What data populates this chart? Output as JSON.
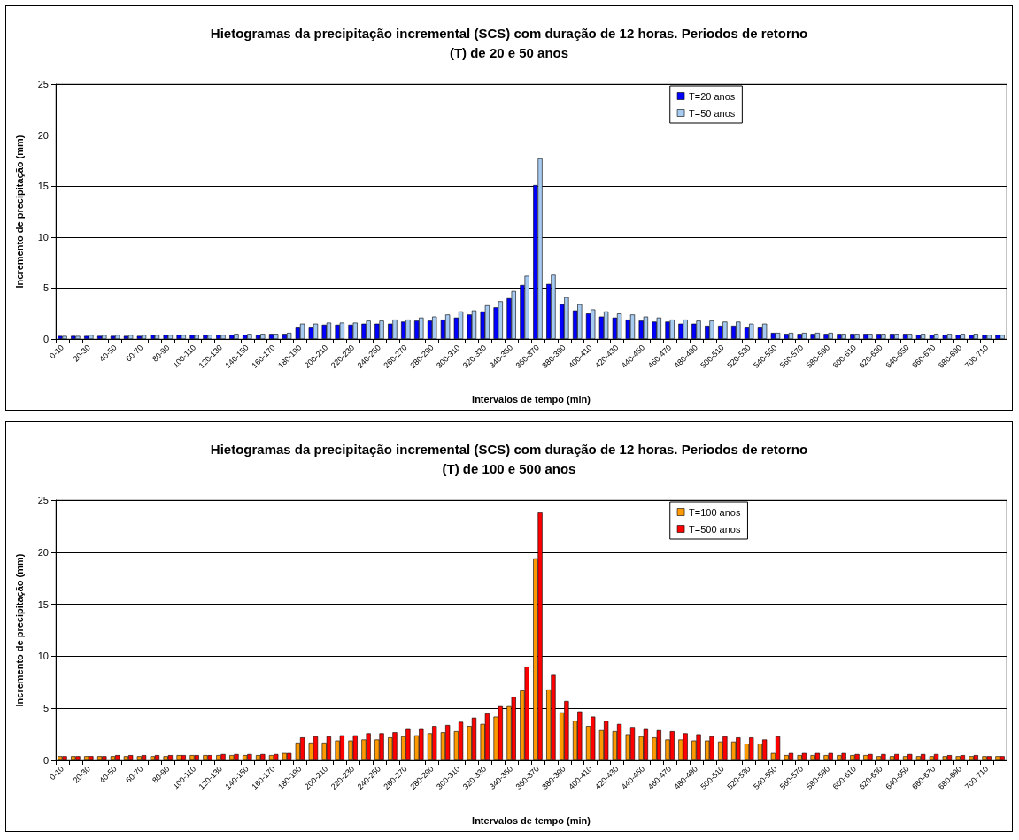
{
  "chart_data": [
    {
      "type": "bar",
      "title": "Hietogramas da precipitação incremental (SCS) com duração de 12 horas. Periodos de retorno\n(T) de 20 e 50 anos",
      "xlabel": "Intervalos de tempo (min)",
      "ylabel": "Incremento de precipitação (mm)",
      "categories": [
        "0-10",
        null,
        "20-30",
        null,
        "40-50",
        null,
        "60-70",
        null,
        "80-90",
        null,
        "100-110",
        null,
        "120-130",
        null,
        "140-150",
        null,
        "160-170",
        null,
        "180-190",
        null,
        "200-210",
        null,
        "220-230",
        null,
        "240-250",
        null,
        "260-270",
        null,
        "280-290",
        null,
        "300-310",
        null,
        "320-330",
        null,
        "340-350",
        null,
        "360-370",
        null,
        "380-390",
        null,
        "400-410",
        null,
        "420-430",
        null,
        "440-450",
        null,
        "460-470",
        null,
        "480-490",
        null,
        "500-510",
        null,
        "520-530",
        null,
        "540-550",
        null,
        "560-570",
        null,
        "580-590",
        null,
        "600-610",
        null,
        "620-630",
        null,
        "640-650",
        null,
        "660-670",
        null,
        "680-690",
        null,
        "700-710",
        null
      ],
      "series": [
        {
          "name": "T=20 anos",
          "color": "#0000ff",
          "values": [
            0.3,
            0.3,
            0.3,
            0.3,
            0.3,
            0.3,
            0.3,
            0.4,
            0.4,
            0.4,
            0.4,
            0.4,
            0.4,
            0.4,
            0.4,
            0.4,
            0.5,
            0.5,
            1.2,
            1.2,
            1.4,
            1.4,
            1.4,
            1.5,
            1.5,
            1.5,
            1.7,
            1.8,
            1.8,
            1.9,
            2.1,
            2.4,
            2.7,
            3.1,
            4.0,
            5.3,
            15.1,
            5.4,
            3.4,
            2.8,
            2.5,
            2.2,
            2.1,
            1.9,
            1.8,
            1.7,
            1.7,
            1.5,
            1.5,
            1.3,
            1.3,
            1.3,
            1.2,
            1.2,
            0.6,
            0.5,
            0.5,
            0.5,
            0.5,
            0.5,
            0.5,
            0.5,
            0.5,
            0.5,
            0.5,
            0.4,
            0.4,
            0.4,
            0.4,
            0.4,
            0.4,
            0.4
          ]
        },
        {
          "name": "T=50 anos",
          "color": "#a6caf0",
          "values": [
            0.3,
            0.3,
            0.4,
            0.4,
            0.4,
            0.4,
            0.4,
            0.4,
            0.4,
            0.4,
            0.4,
            0.4,
            0.4,
            0.5,
            0.5,
            0.5,
            0.5,
            0.6,
            1.5,
            1.5,
            1.6,
            1.6,
            1.6,
            1.8,
            1.8,
            1.9,
            1.9,
            2.1,
            2.2,
            2.4,
            2.7,
            2.8,
            3.3,
            3.7,
            4.7,
            6.2,
            17.7,
            6.3,
            4.1,
            3.4,
            2.9,
            2.7,
            2.5,
            2.4,
            2.2,
            2.1,
            1.9,
            1.9,
            1.8,
            1.8,
            1.7,
            1.7,
            1.5,
            1.5,
            0.6,
            0.6,
            0.6,
            0.6,
            0.6,
            0.5,
            0.5,
            0.5,
            0.5,
            0.5,
            0.5,
            0.5,
            0.5,
            0.5,
            0.5,
            0.5,
            0.4,
            0.4
          ]
        }
      ],
      "ylim": [
        0,
        25
      ],
      "yticks": [
        0,
        5,
        10,
        15,
        20,
        25
      ],
      "grid": "y",
      "legend": "top right"
    },
    {
      "type": "bar",
      "title": "Hietogramas da precipitação incremental (SCS) com duração de 12 horas. Periodos de retorno\n(T) de 100 e 500 anos",
      "xlabel": "Intervalos de tempo (min)",
      "ylabel": "Incremento de precipitação (mm)",
      "categories": [
        "0-10",
        null,
        "20-30",
        null,
        "40-50",
        null,
        "60-70",
        null,
        "80-90",
        null,
        "100-110",
        null,
        "120-130",
        null,
        "140-150",
        null,
        "160-170",
        null,
        "180-190",
        null,
        "200-210",
        null,
        "220-230",
        null,
        "240-250",
        null,
        "260-270",
        null,
        "280-290",
        null,
        "300-310",
        null,
        "320-330",
        null,
        "340-350",
        null,
        "360-370",
        null,
        "380-390",
        null,
        "400-410",
        null,
        "420-430",
        null,
        "440-450",
        null,
        "460-470",
        null,
        "480-490",
        null,
        "500-510",
        null,
        "520-530",
        null,
        "540-550",
        null,
        "560-570",
        null,
        "580-590",
        null,
        "600-610",
        null,
        "620-630",
        null,
        "640-650",
        null,
        "660-670",
        null,
        "680-690",
        null,
        "700-710",
        null
      ],
      "series": [
        {
          "name": "T=100 anos",
          "color": "#ff9900",
          "values": [
            0.4,
            0.4,
            0.4,
            0.4,
            0.4,
            0.4,
            0.4,
            0.4,
            0.4,
            0.5,
            0.5,
            0.5,
            0.5,
            0.5,
            0.5,
            0.5,
            0.5,
            0.7,
            1.7,
            1.7,
            1.7,
            1.9,
            1.9,
            2.0,
            2.0,
            2.2,
            2.3,
            2.4,
            2.6,
            2.7,
            2.8,
            3.3,
            3.5,
            4.2,
            5.2,
            6.7,
            19.4,
            6.8,
            4.6,
            3.8,
            3.3,
            2.9,
            2.8,
            2.5,
            2.3,
            2.2,
            2.0,
            2.0,
            1.9,
            1.9,
            1.8,
            1.8,
            1.6,
            1.6,
            0.7,
            0.5,
            0.5,
            0.5,
            0.5,
            0.5,
            0.5,
            0.5,
            0.4,
            0.4,
            0.4,
            0.4,
            0.4,
            0.4,
            0.4,
            0.4,
            0.4,
            0.4
          ]
        },
        {
          "name": "T=500 anos",
          "color": "#ff0000",
          "values": [
            0.4,
            0.4,
            0.4,
            0.4,
            0.5,
            0.5,
            0.5,
            0.5,
            0.5,
            0.5,
            0.5,
            0.5,
            0.6,
            0.6,
            0.6,
            0.6,
            0.6,
            0.7,
            2.2,
            2.3,
            2.3,
            2.4,
            2.4,
            2.6,
            2.6,
            2.7,
            3.0,
            3.0,
            3.3,
            3.4,
            3.7,
            4.1,
            4.5,
            5.2,
            6.1,
            9.0,
            23.8,
            8.2,
            5.7,
            4.7,
            4.2,
            3.8,
            3.5,
            3.2,
            3.0,
            2.9,
            2.8,
            2.6,
            2.5,
            2.3,
            2.3,
            2.2,
            2.2,
            2.0,
            2.3,
            0.7,
            0.7,
            0.7,
            0.7,
            0.7,
            0.6,
            0.6,
            0.6,
            0.6,
            0.6,
            0.6,
            0.6,
            0.5,
            0.5,
            0.5,
            0.4,
            0.4
          ]
        }
      ],
      "ylim": [
        0,
        25
      ],
      "yticks": [
        0,
        5,
        10,
        15,
        20,
        25
      ],
      "grid": "y",
      "legend": "top right"
    }
  ]
}
